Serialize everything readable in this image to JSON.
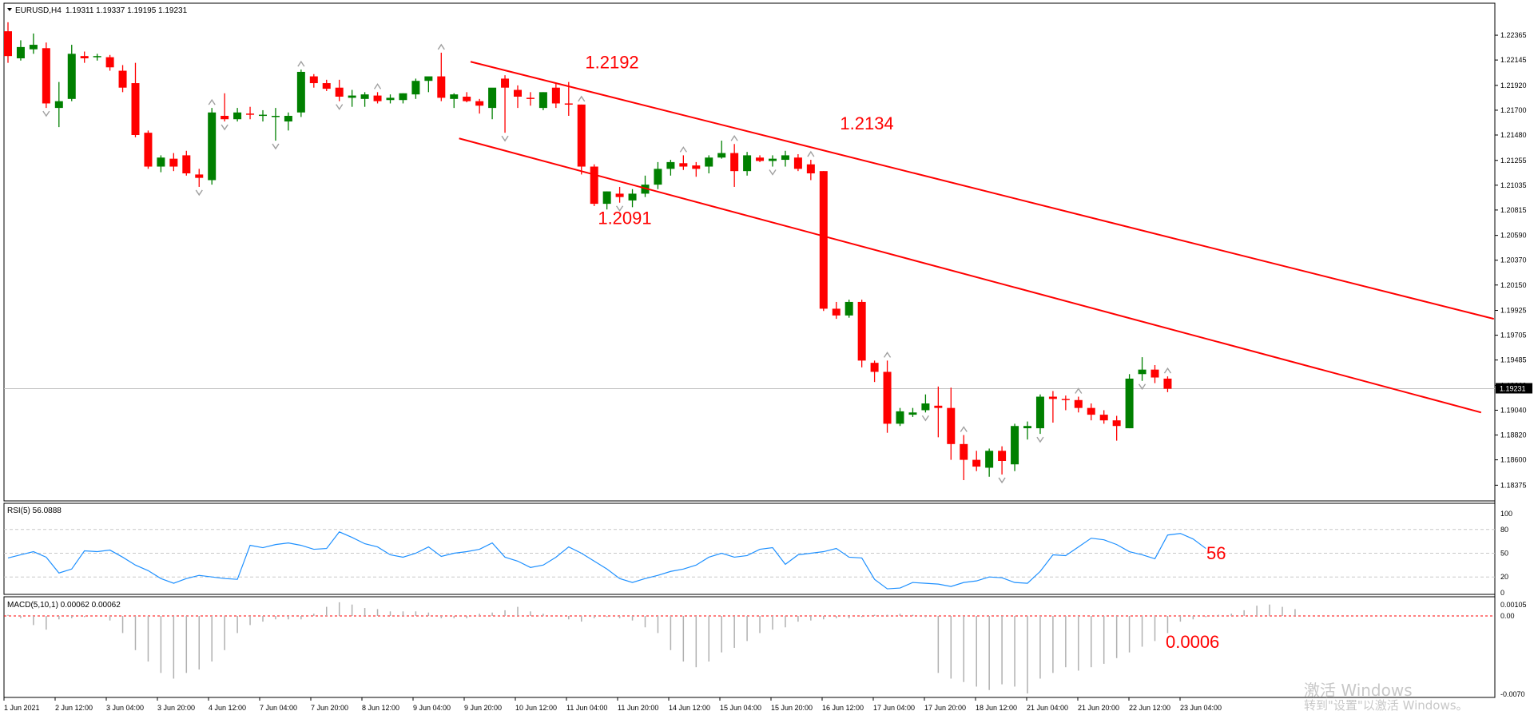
{
  "header": {
    "symbol_label": "EURUSD,H4",
    "ohlc": "1.19311 1.19337 1.19195 1.19231"
  },
  "colors": {
    "bull": "#008000",
    "bear": "#ff0000",
    "channel": "#ff0000",
    "annotation": "#ff0000",
    "rsi_line": "#1e90ff",
    "macd_hist": "#b0b0b0",
    "macd_signal": "#ff0000"
  },
  "chart_data": [
    {
      "type": "candlestick",
      "title": "EURUSD,H4",
      "ylim": [
        1.1825,
        1.225
      ],
      "grid": false,
      "price_axis_ticks": [
        "1.22365",
        "1.22145",
        "1.21920",
        "1.21700",
        "1.21480",
        "1.21255",
        "1.21035",
        "1.20815",
        "1.20590",
        "1.20370",
        "1.20150",
        "1.19925",
        "1.19705",
        "1.19485",
        "1.19260",
        "1.19040",
        "1.18820",
        "1.18600",
        "1.18375"
      ],
      "current_price_label": "1.19231",
      "current_price": 1.19231,
      "time_axis_labels": [
        "1 Jun 2021",
        "2 Jun 12:00",
        "3 Jun 04:00",
        "3 Jun 20:00",
        "4 Jun 12:00",
        "7 Jun 04:00",
        "7 Jun 20:00",
        "8 Jun 12:00",
        "9 Jun 04:00",
        "9 Jun 20:00",
        "10 Jun 12:00",
        "11 Jun 04:00",
        "11 Jun 20:00",
        "14 Jun 12:00",
        "15 Jun 04:00",
        "15 Jun 20:00",
        "16 Jun 12:00",
        "17 Jun 04:00",
        "17 Jun 20:00",
        "18 Jun 12:00",
        "21 Jun 04:00",
        "21 Jun 20:00",
        "22 Jun 12:00",
        "23 Jun 04:00"
      ],
      "candles": [
        [
          1.224,
          1.2248,
          1.2212,
          1.2218
        ],
        [
          1.2216,
          1.2232,
          1.2214,
          1.2226
        ],
        [
          1.2224,
          1.2238,
          1.222,
          1.2228
        ],
        [
          1.2225,
          1.223,
          1.2172,
          1.2176
        ],
        [
          1.2172,
          1.2195,
          1.2155,
          1.2178
        ],
        [
          1.218,
          1.2228,
          1.2178,
          1.222
        ],
        [
          1.2218,
          1.2222,
          1.2212,
          1.2216
        ],
        [
          1.2217,
          1.222,
          1.2214,
          1.2218
        ],
        [
          1.2217,
          1.2219,
          1.2205,
          1.2208
        ],
        [
          1.2205,
          1.221,
          1.2186,
          1.219
        ],
        [
          1.2194,
          1.2212,
          1.2146,
          1.2148
        ],
        [
          1.215,
          1.2152,
          1.2118,
          1.212
        ],
        [
          1.212,
          1.213,
          1.2115,
          1.2128
        ],
        [
          1.2127,
          1.2132,
          1.2116,
          1.212
        ],
        [
          1.213,
          1.2134,
          1.2112,
          1.2114
        ],
        [
          1.2113,
          1.2118,
          1.2102,
          1.211
        ],
        [
          1.2108,
          1.2172,
          1.2104,
          1.2168
        ],
        [
          1.2165,
          1.2185,
          1.216,
          1.2162
        ],
        [
          1.2162,
          1.2172,
          1.216,
          1.2168
        ],
        [
          1.2167,
          1.2173,
          1.2162,
          1.2166
        ],
        [
          1.2166,
          1.217,
          1.216,
          1.2166
        ],
        [
          1.2165,
          1.2172,
          1.2143,
          1.2165
        ],
        [
          1.216,
          1.2168,
          1.2152,
          1.2165
        ],
        [
          1.2168,
          1.2206,
          1.2164,
          1.2204
        ],
        [
          1.22,
          1.2202,
          1.219,
          1.2194
        ],
        [
          1.2194,
          1.2197,
          1.2187,
          1.2189
        ],
        [
          1.219,
          1.2197,
          1.2178,
          1.2182
        ],
        [
          1.2181,
          1.2188,
          1.2173,
          1.2183
        ],
        [
          1.218,
          1.2186,
          1.2173,
          1.2184
        ],
        [
          1.2183,
          1.2186,
          1.2176,
          1.2178
        ],
        [
          1.2179,
          1.2184,
          1.2176,
          1.2181
        ],
        [
          1.2179,
          1.2185,
          1.2176,
          1.2185
        ],
        [
          1.2184,
          1.2198,
          1.218,
          1.2196
        ],
        [
          1.2196,
          1.2199,
          1.2186,
          1.22
        ],
        [
          1.22,
          1.2221,
          1.2178,
          1.2181
        ],
        [
          1.218,
          1.2185,
          1.2172,
          1.2184
        ],
        [
          1.2182,
          1.2186,
          1.2177,
          1.2178
        ],
        [
          1.2178,
          1.218,
          1.2167,
          1.2174
        ],
        [
          1.2172,
          1.2188,
          1.2162,
          1.219
        ],
        [
          1.2198,
          1.2201,
          1.215,
          1.219
        ],
        [
          1.2188,
          1.2192,
          1.2172,
          1.2182
        ],
        [
          1.2181,
          1.2186,
          1.2174,
          1.218
        ],
        [
          1.2172,
          1.2186,
          1.217,
          1.2186
        ],
        [
          1.219,
          1.2194,
          1.2172,
          1.2176
        ],
        [
          1.2176,
          1.2195,
          1.2165,
          1.2175
        ],
        [
          1.2175,
          1.2175,
          1.2113,
          1.212
        ],
        [
          1.212,
          1.2122,
          1.2085,
          1.2087
        ],
        [
          1.2087,
          1.2098,
          1.2082,
          1.2098
        ],
        [
          1.2096,
          1.2102,
          1.2088,
          1.2093
        ],
        [
          1.209,
          1.21,
          1.2084,
          1.2096
        ],
        [
          1.2096,
          1.2112,
          1.2093,
          1.2104
        ],
        [
          1.2104,
          1.2124,
          1.21,
          1.2118
        ],
        [
          1.2118,
          1.2126,
          1.2112,
          1.2124
        ],
        [
          1.2123,
          1.213,
          1.2117,
          1.212
        ],
        [
          1.2121,
          1.2124,
          1.2111,
          1.2118
        ],
        [
          1.212,
          1.213,
          1.2114,
          1.2128
        ],
        [
          1.2128,
          1.2143,
          1.2127,
          1.2132
        ],
        [
          1.2132,
          1.214,
          1.2102,
          1.2116
        ],
        [
          1.2116,
          1.2133,
          1.2112,
          1.213
        ],
        [
          1.2128,
          1.213,
          1.2124,
          1.2125
        ],
        [
          1.2125,
          1.213,
          1.212,
          1.2127
        ],
        [
          1.2126,
          1.2134,
          1.212,
          1.213
        ],
        [
          1.2128,
          1.2131,
          1.2116,
          1.2118
        ],
        [
          1.2122,
          1.2126,
          1.2108,
          1.2114
        ],
        [
          1.2116,
          1.2116,
          1.1992,
          1.1994
        ],
        [
          1.1994,
          1.2,
          1.1985,
          1.1988
        ],
        [
          1.1988,
          1.2002,
          1.1986,
          1.2
        ],
        [
          1.2,
          1.2002,
          1.1942,
          1.1948
        ],
        [
          1.1946,
          1.1948,
          1.1929,
          1.1938
        ],
        [
          1.1938,
          1.1948,
          1.1884,
          1.1892
        ],
        [
          1.1892,
          1.1906,
          1.189,
          1.1903
        ],
        [
          1.19,
          1.1906,
          1.1898,
          1.1902
        ],
        [
          1.1904,
          1.1918,
          1.1902,
          1.191
        ],
        [
          1.1908,
          1.1925,
          1.188,
          1.1906
        ],
        [
          1.1906,
          1.1924,
          1.186,
          1.1874
        ],
        [
          1.1874,
          1.1882,
          1.1842,
          1.186
        ],
        [
          1.186,
          1.1868,
          1.185,
          1.1854
        ],
        [
          1.1853,
          1.187,
          1.1845,
          1.1868
        ],
        [
          1.1868,
          1.1872,
          1.1847,
          1.1859
        ],
        [
          1.1856,
          1.1892,
          1.185,
          1.189
        ],
        [
          1.1888,
          1.1894,
          1.1878,
          1.189
        ],
        [
          1.1888,
          1.1918,
          1.1883,
          1.1916
        ],
        [
          1.1916,
          1.1921,
          1.1893,
          1.1914
        ],
        [
          1.1914,
          1.1917,
          1.1904,
          1.1913
        ],
        [
          1.1913,
          1.1916,
          1.1902,
          1.1906
        ],
        [
          1.1906,
          1.191,
          1.1895,
          1.19
        ],
        [
          1.19,
          1.1904,
          1.1892,
          1.1895
        ],
        [
          1.1895,
          1.1899,
          1.1877,
          1.189
        ],
        [
          1.1888,
          1.1936,
          1.1888,
          1.1932
        ],
        [
          1.1936,
          1.1951,
          1.193,
          1.194
        ],
        [
          1.194,
          1.1944,
          1.1928,
          1.1933
        ],
        [
          1.1932,
          1.1934,
          1.192,
          1.1923
        ]
      ],
      "swing_markers": [
        {
          "i": 3,
          "dir": "down"
        },
        {
          "i": 17,
          "dir": "down"
        },
        {
          "i": 15,
          "dir": "down"
        },
        {
          "i": 16,
          "dir": "up"
        },
        {
          "i": 21,
          "dir": "down"
        },
        {
          "i": 23,
          "dir": "up"
        },
        {
          "i": 26,
          "dir": "down"
        },
        {
          "i": 29,
          "dir": "up"
        },
        {
          "i": 34,
          "dir": "up"
        },
        {
          "i": 39,
          "dir": "down"
        },
        {
          "i": 45,
          "dir": "up"
        },
        {
          "i": 48,
          "dir": "down"
        },
        {
          "i": 53,
          "dir": "up"
        },
        {
          "i": 57,
          "dir": "up"
        },
        {
          "i": 60,
          "dir": "down"
        },
        {
          "i": 63,
          "dir": "up"
        },
        {
          "i": 69,
          "dir": "up"
        },
        {
          "i": 72,
          "dir": "down"
        },
        {
          "i": 75,
          "dir": "up"
        },
        {
          "i": 78,
          "dir": "down"
        },
        {
          "i": 81,
          "dir": "down"
        },
        {
          "i": 84,
          "dir": "up"
        },
        {
          "i": 89,
          "dir": "down"
        },
        {
          "i": 91,
          "dir": "up"
        }
      ],
      "channel_lines": [
        {
          "from": {
            "i": 36.3,
            "price": 1.2213
          },
          "to": {
            "i": 116.6,
            "price": 1.1985
          }
        },
        {
          "from": {
            "i": 35.4,
            "price": 1.2145
          },
          "to": {
            "i": 115.6,
            "price": 1.1902
          }
        }
      ],
      "annotations": [
        {
          "text": "1.2192",
          "i": 47.4,
          "price": 1.2207
        },
        {
          "text": "1.2134",
          "i": 67.4,
          "price": 1.2153
        },
        {
          "text": "1.2091",
          "i": 48.4,
          "price": 1.2069
        }
      ]
    },
    {
      "type": "line",
      "title": "RSI(5) 56.0888",
      "ylim": [
        0,
        100
      ],
      "y_ticks": [
        100,
        80,
        50,
        20,
        0
      ],
      "levels": [
        80,
        50,
        20
      ],
      "value_label": "56",
      "values": [
        44,
        48,
        52,
        45,
        25,
        30,
        53,
        52,
        54,
        45,
        35,
        28,
        18,
        12,
        18,
        22,
        20,
        18,
        17,
        60,
        57,
        61,
        63,
        60,
        55,
        56,
        77,
        70,
        62,
        58,
        48,
        45,
        50,
        58,
        46,
        50,
        52,
        55,
        63,
        45,
        40,
        32,
        35,
        45,
        58,
        50,
        40,
        30,
        18,
        13,
        18,
        22,
        27,
        30,
        35,
        45,
        50,
        45,
        47,
        55,
        57,
        36,
        48,
        50,
        52,
        56,
        45,
        44,
        17,
        5,
        6,
        13,
        12,
        11,
        8,
        13,
        15,
        20,
        19,
        13,
        12,
        27,
        48,
        47,
        58,
        69,
        67,
        61,
        52,
        48,
        43,
        73,
        75,
        68,
        56
      ]
    },
    {
      "type": "bar",
      "title": "MACD(5,10,1) 0.00062 0.00062",
      "ylim": [
        -0.0068,
        0.0011
      ],
      "y_ticks": [
        "0.00105",
        "0.00",
        "-0.0070"
      ],
      "value_label": "0.0006",
      "values": [
        0.0001,
        -0.0002,
        -0.0008,
        -0.0012,
        -0.0003,
        -0.0002,
        -0.0001,
        0.0,
        -0.0004,
        -0.0015,
        -0.003,
        -0.004,
        -0.005,
        -0.0055,
        -0.005,
        -0.0047,
        -0.004,
        -0.003,
        -0.0015,
        -0.0008,
        -0.0005,
        -0.0003,
        -0.0003,
        -0.0003,
        0.0002,
        0.0008,
        0.0012,
        0.001,
        0.0007,
        0.0006,
        0.0004,
        0.0004,
        0.0004,
        0.0003,
        -0.0002,
        -0.0002,
        -0.0002,
        0.0002,
        0.0003,
        0.0005,
        0.0008,
        0.0004,
        0.0002,
        0.0,
        -0.0003,
        -0.0005,
        -0.0002,
        -0.0001,
        -0.0002,
        -0.0004,
        -0.001,
        -0.0015,
        -0.003,
        -0.004,
        -0.0045,
        -0.004,
        -0.0032,
        -0.0028,
        -0.0022,
        -0.0015,
        -0.0012,
        -0.001,
        -0.0005,
        -0.0004,
        -0.0003,
        -0.0002,
        -0.0002,
        -0.0001,
        0.0001,
        0.0001,
        0.0002,
        0.0001,
        -0.0001,
        -0.005,
        -0.0055,
        -0.0058,
        -0.0062,
        -0.0065,
        -0.006,
        -0.0062,
        -0.0068,
        -0.0055,
        -0.005,
        -0.0045,
        -0.0048,
        -0.0045,
        -0.0042,
        -0.0037,
        -0.0032,
        -0.0027,
        -0.0022,
        -0.0015,
        -0.0005,
        -0.0003,
        -0.0001,
        0.0001,
        0.0002,
        0.0005,
        0.0009,
        0.001,
        0.0008,
        0.0006
      ]
    }
  ],
  "watermark": {
    "line1": "激活 Windows",
    "line2": "转到\"设置\"以激活 Windows。"
  }
}
